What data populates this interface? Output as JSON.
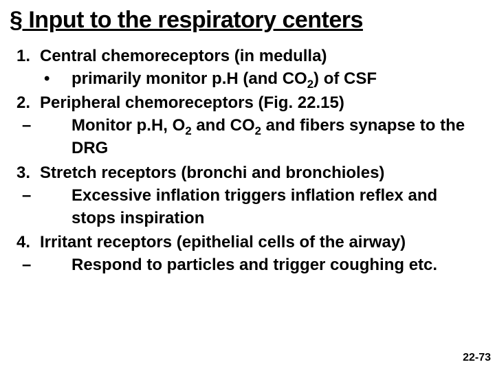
{
  "title": "§ Input to the respiratory centers",
  "items": [
    {
      "num": "1.",
      "main": "Central chemoreceptors (in medulla)",
      "sub_type": "bullet",
      "sub_html": "primarily monitor p.H (and CO<sub>2</sub>) of CSF"
    },
    {
      "num": "2.",
      "main": "Peripheral chemoreceptors (Fig. 22.15)",
      "sub_type": "dash",
      "sub_html": "Monitor p.H, O<sub>2</sub> and CO<sub>2</sub> and fibers synapse to the DRG"
    },
    {
      "num": "3.",
      "main": "Stretch receptors (bronchi and bronchioles)",
      "sub_type": "dash",
      "sub_html": "Excessive inflation triggers inflation reflex and stops inspiration"
    },
    {
      "num": "4.",
      "main": "Irritant receptors (epithelial cells of the airway)",
      "sub_type": "dash",
      "sub_html": "Respond to particles and trigger coughing etc."
    }
  ],
  "page_number": "22-73",
  "colors": {
    "background": "#ffffff",
    "text": "#000000"
  },
  "typography": {
    "title_fontsize": 34,
    "body_fontsize": 24,
    "pagenum_fontsize": 16,
    "font_family": "Arial",
    "font_weight": "bold"
  }
}
